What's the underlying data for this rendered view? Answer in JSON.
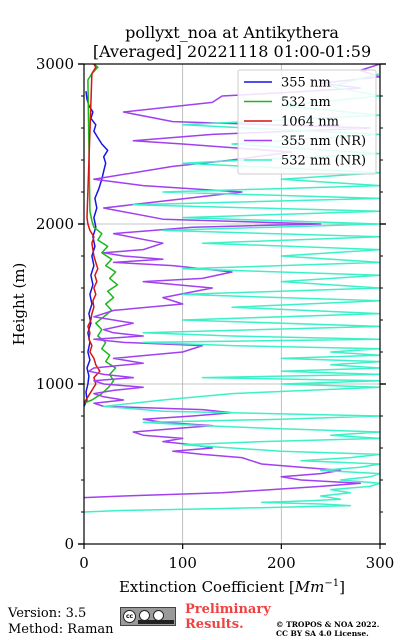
{
  "chart_data": {
    "type": "line",
    "title": "pollyxt_noa at Antikythera",
    "subtitle": "[Averaged] 20221118 01:00-01:59",
    "xlabel": "Extinction Coefficient [",
    "xlabel_unit_base": "Mm",
    "xlabel_unit_exp": "−1",
    "xlabel_close": "]",
    "ylabel": "Height (m)",
    "xlim": [
      0,
      300
    ],
    "ylim": [
      0,
      3000
    ],
    "xticks": [
      0,
      100,
      200,
      300
    ],
    "yticks": [
      0,
      1000,
      2000,
      3000
    ],
    "grid": true,
    "legend_position": "top-right",
    "series": [
      {
        "name": "355 nm",
        "color": "#1515e6",
        "points": [
          [
            0,
            860
          ],
          [
            3,
            900
          ],
          [
            2,
            950
          ],
          [
            4,
            1000
          ],
          [
            5,
            1050
          ],
          [
            3,
            1100
          ],
          [
            6,
            1150
          ],
          [
            4,
            1200
          ],
          [
            6,
            1260
          ],
          [
            4,
            1320
          ],
          [
            7,
            1380
          ],
          [
            5,
            1440
          ],
          [
            8,
            1500
          ],
          [
            6,
            1560
          ],
          [
            9,
            1620
          ],
          [
            7,
            1680
          ],
          [
            10,
            1740
          ],
          [
            8,
            1800
          ],
          [
            11,
            1860
          ],
          [
            9,
            1920
          ],
          [
            12,
            1980
          ],
          [
            10,
            2040
          ],
          [
            13,
            2100
          ],
          [
            11,
            2160
          ],
          [
            15,
            2220
          ],
          [
            18,
            2280
          ],
          [
            20,
            2330
          ],
          [
            22,
            2380
          ],
          [
            20,
            2420
          ],
          [
            24,
            2460
          ],
          [
            18,
            2500
          ],
          [
            14,
            2540
          ],
          [
            10,
            2580
          ],
          [
            12,
            2620
          ],
          [
            7,
            2660
          ],
          [
            9,
            2700
          ],
          [
            5,
            2740
          ],
          [
            3,
            2780
          ],
          [
            2,
            2830
          ]
        ]
      },
      {
        "name": "532 nm",
        "color": "#1ab81a",
        "points": [
          [
            0,
            880
          ],
          [
            8,
            900
          ],
          [
            18,
            940
          ],
          [
            25,
            980
          ],
          [
            30,
            1020
          ],
          [
            26,
            1060
          ],
          [
            32,
            1100
          ],
          [
            22,
            1140
          ],
          [
            26,
            1180
          ],
          [
            18,
            1220
          ],
          [
            22,
            1260
          ],
          [
            14,
            1300
          ],
          [
            18,
            1340
          ],
          [
            12,
            1380
          ],
          [
            20,
            1420
          ],
          [
            28,
            1460
          ],
          [
            22,
            1500
          ],
          [
            30,
            1540
          ],
          [
            24,
            1580
          ],
          [
            34,
            1620
          ],
          [
            26,
            1660
          ],
          [
            32,
            1700
          ],
          [
            22,
            1740
          ],
          [
            28,
            1780
          ],
          [
            18,
            1820
          ],
          [
            24,
            1860
          ],
          [
            14,
            1900
          ],
          [
            18,
            1940
          ],
          [
            10,
            1980
          ],
          [
            8,
            2020
          ],
          [
            6,
            2080
          ],
          [
            4,
            2900
          ],
          [
            8,
            2940
          ],
          [
            14,
            2980
          ],
          [
            10,
            3000
          ]
        ]
      },
      {
        "name": "1064 nm",
        "color": "#d61414",
        "points": [
          [
            0,
            880
          ],
          [
            4,
            920
          ],
          [
            8,
            960
          ],
          [
            12,
            1000
          ],
          [
            10,
            1040
          ],
          [
            16,
            1080
          ],
          [
            12,
            1120
          ],
          [
            10,
            1160
          ],
          [
            6,
            1200
          ],
          [
            8,
            1240
          ],
          [
            5,
            1280
          ],
          [
            6,
            1320
          ],
          [
            4,
            1360
          ],
          [
            7,
            1400
          ],
          [
            8,
            1440
          ],
          [
            10,
            1480
          ],
          [
            9,
            1520
          ],
          [
            12,
            1560
          ],
          [
            10,
            1600
          ],
          [
            13,
            1640
          ],
          [
            11,
            1680
          ],
          [
            14,
            1720
          ],
          [
            12,
            1760
          ],
          [
            10,
            1800
          ],
          [
            9,
            1840
          ],
          [
            8,
            1880
          ],
          [
            10,
            1920
          ],
          [
            6,
            1960
          ],
          [
            4,
            2000
          ],
          [
            3,
            2040
          ],
          [
            8,
            2940
          ],
          [
            12,
            2980
          ],
          [
            10,
            3000
          ]
        ]
      },
      {
        "name": "355 nm (NR)",
        "color": "#a040f0",
        "points": [
          [
            0,
            290
          ],
          [
            40,
            300
          ],
          [
            90,
            310
          ],
          [
            140,
            320
          ],
          [
            190,
            340
          ],
          [
            240,
            360
          ],
          [
            280,
            380
          ],
          [
            220,
            400
          ],
          [
            200,
            420
          ],
          [
            240,
            440
          ],
          [
            260,
            460
          ],
          [
            220,
            480
          ],
          [
            180,
            500
          ],
          [
            170,
            520
          ],
          [
            160,
            540
          ],
          [
            120,
            560
          ],
          [
            90,
            580
          ],
          [
            130,
            600
          ],
          [
            110,
            620
          ],
          [
            80,
            640
          ],
          [
            100,
            660
          ],
          [
            60,
            680
          ],
          [
            50,
            700
          ],
          [
            90,
            720
          ],
          [
            130,
            740
          ],
          [
            80,
            760
          ],
          [
            60,
            780
          ],
          [
            110,
            800
          ],
          [
            150,
            820
          ],
          [
            120,
            840
          ],
          [
            20,
            860
          ],
          [
            10,
            880
          ],
          [
            40,
            900
          ],
          [
            20,
            920
          ],
          [
            10,
            940
          ],
          [
            30,
            960
          ],
          [
            60,
            980
          ],
          [
            20,
            1000
          ],
          [
            10,
            1020
          ],
          [
            50,
            1040
          ],
          [
            20,
            1060
          ],
          [
            5,
            1080
          ],
          [
            10,
            1100
          ],
          [
            60,
            1130
          ],
          [
            30,
            1160
          ],
          [
            100,
            1200
          ],
          [
            120,
            1240
          ],
          [
            40,
            1260
          ],
          [
            10,
            1280
          ],
          [
            60,
            1300
          ],
          [
            30,
            1320
          ],
          [
            20,
            1340
          ],
          [
            50,
            1380
          ],
          [
            10,
            1420
          ],
          [
            30,
            1460
          ],
          [
            100,
            1500
          ],
          [
            80,
            1540
          ],
          [
            130,
            1600
          ],
          [
            60,
            1640
          ],
          [
            120,
            1660
          ],
          [
            150,
            1700
          ],
          [
            90,
            1740
          ],
          [
            30,
            1760
          ],
          [
            80,
            1780
          ],
          [
            40,
            1800
          ],
          [
            20,
            1820
          ],
          [
            60,
            1840
          ],
          [
            80,
            1880
          ],
          [
            30,
            1940
          ],
          [
            110,
            1980
          ],
          [
            240,
            2000
          ],
          [
            80,
            2030
          ],
          [
            20,
            2100
          ],
          [
            160,
            2200
          ],
          [
            60,
            2240
          ],
          [
            10,
            2280
          ],
          [
            90,
            2360
          ],
          [
            150,
            2400
          ],
          [
            210,
            2450
          ],
          [
            100,
            2500
          ],
          [
            50,
            2520
          ],
          [
            130,
            2560
          ],
          [
            290,
            2600
          ],
          [
            90,
            2640
          ],
          [
            40,
            2700
          ],
          [
            130,
            2760
          ],
          [
            140,
            2800
          ],
          [
            200,
            2820
          ],
          [
            280,
            2850
          ],
          [
            240,
            2880
          ],
          [
            300,
            2920
          ],
          [
            280,
            2960
          ],
          [
            300,
            3000
          ]
        ]
      },
      {
        "name": "532 nm (NR)",
        "color": "#3ef0c8",
        "points": [
          [
            0,
            200
          ],
          [
            40,
            210
          ],
          [
            130,
            220
          ],
          [
            200,
            230
          ],
          [
            270,
            240
          ],
          [
            240,
            250
          ],
          [
            180,
            260
          ],
          [
            230,
            270
          ],
          [
            260,
            280
          ],
          [
            240,
            300
          ],
          [
            270,
            320
          ],
          [
            250,
            340
          ],
          [
            290,
            360
          ],
          [
            300,
            380
          ],
          [
            260,
            400
          ],
          [
            290,
            420
          ],
          [
            300,
            440
          ],
          [
            240,
            460
          ],
          [
            280,
            480
          ],
          [
            300,
            500
          ],
          [
            220,
            520
          ],
          [
            270,
            540
          ],
          [
            300,
            560
          ],
          [
            200,
            580
          ],
          [
            150,
            600
          ],
          [
            100,
            620
          ],
          [
            180,
            640
          ],
          [
            300,
            660
          ],
          [
            250,
            680
          ],
          [
            300,
            700
          ],
          [
            200,
            720
          ],
          [
            120,
            740
          ],
          [
            60,
            760
          ],
          [
            200,
            780
          ],
          [
            300,
            800
          ],
          [
            80,
            830
          ],
          [
            20,
            860
          ],
          [
            80,
            900
          ],
          [
            150,
            940
          ],
          [
            300,
            980
          ],
          [
            200,
            1000
          ],
          [
            300,
            1020
          ],
          [
            120,
            1040
          ],
          [
            300,
            1060
          ],
          [
            200,
            1080
          ],
          [
            300,
            1100
          ],
          [
            250,
            1120
          ],
          [
            300,
            1140
          ],
          [
            200,
            1160
          ],
          [
            300,
            1180
          ],
          [
            250,
            1200
          ],
          [
            300,
            1220
          ],
          [
            150,
            1240
          ],
          [
            60,
            1260
          ],
          [
            300,
            1280
          ],
          [
            150,
            1300
          ],
          [
            60,
            1320
          ],
          [
            300,
            1360
          ],
          [
            100,
            1400
          ],
          [
            300,
            1440
          ],
          [
            150,
            1480
          ],
          [
            300,
            1520
          ],
          [
            100,
            1560
          ],
          [
            300,
            1600
          ],
          [
            200,
            1640
          ],
          [
            300,
            1680
          ],
          [
            100,
            1720
          ],
          [
            300,
            1760
          ],
          [
            200,
            1800
          ],
          [
            300,
            1840
          ],
          [
            120,
            1880
          ],
          [
            300,
            1920
          ],
          [
            80,
            1960
          ],
          [
            300,
            2000
          ],
          [
            100,
            2040
          ],
          [
            300,
            2080
          ],
          [
            50,
            2120
          ],
          [
            300,
            2160
          ],
          [
            80,
            2200
          ],
          [
            300,
            2240
          ],
          [
            200,
            2280
          ],
          [
            300,
            2320
          ],
          [
            100,
            2380
          ],
          [
            300,
            2440
          ],
          [
            150,
            2500
          ],
          [
            300,
            2560
          ],
          [
            100,
            2620
          ],
          [
            300,
            2680
          ],
          [
            200,
            2740
          ],
          [
            300,
            2800
          ],
          [
            250,
            2860
          ],
          [
            300,
            2940
          ],
          [
            300,
            3000
          ]
        ]
      }
    ]
  },
  "footer": {
    "version": "Version: 3.5",
    "method": "Method: Raman",
    "prelim_line1": "Preliminary",
    "prelim_line2": "Results.",
    "copyright_line1": "© TROPOS & NOA 2022.",
    "copyright_line2": "CC BY SA 4.0 License.",
    "cc_badge_text": "cc"
  }
}
